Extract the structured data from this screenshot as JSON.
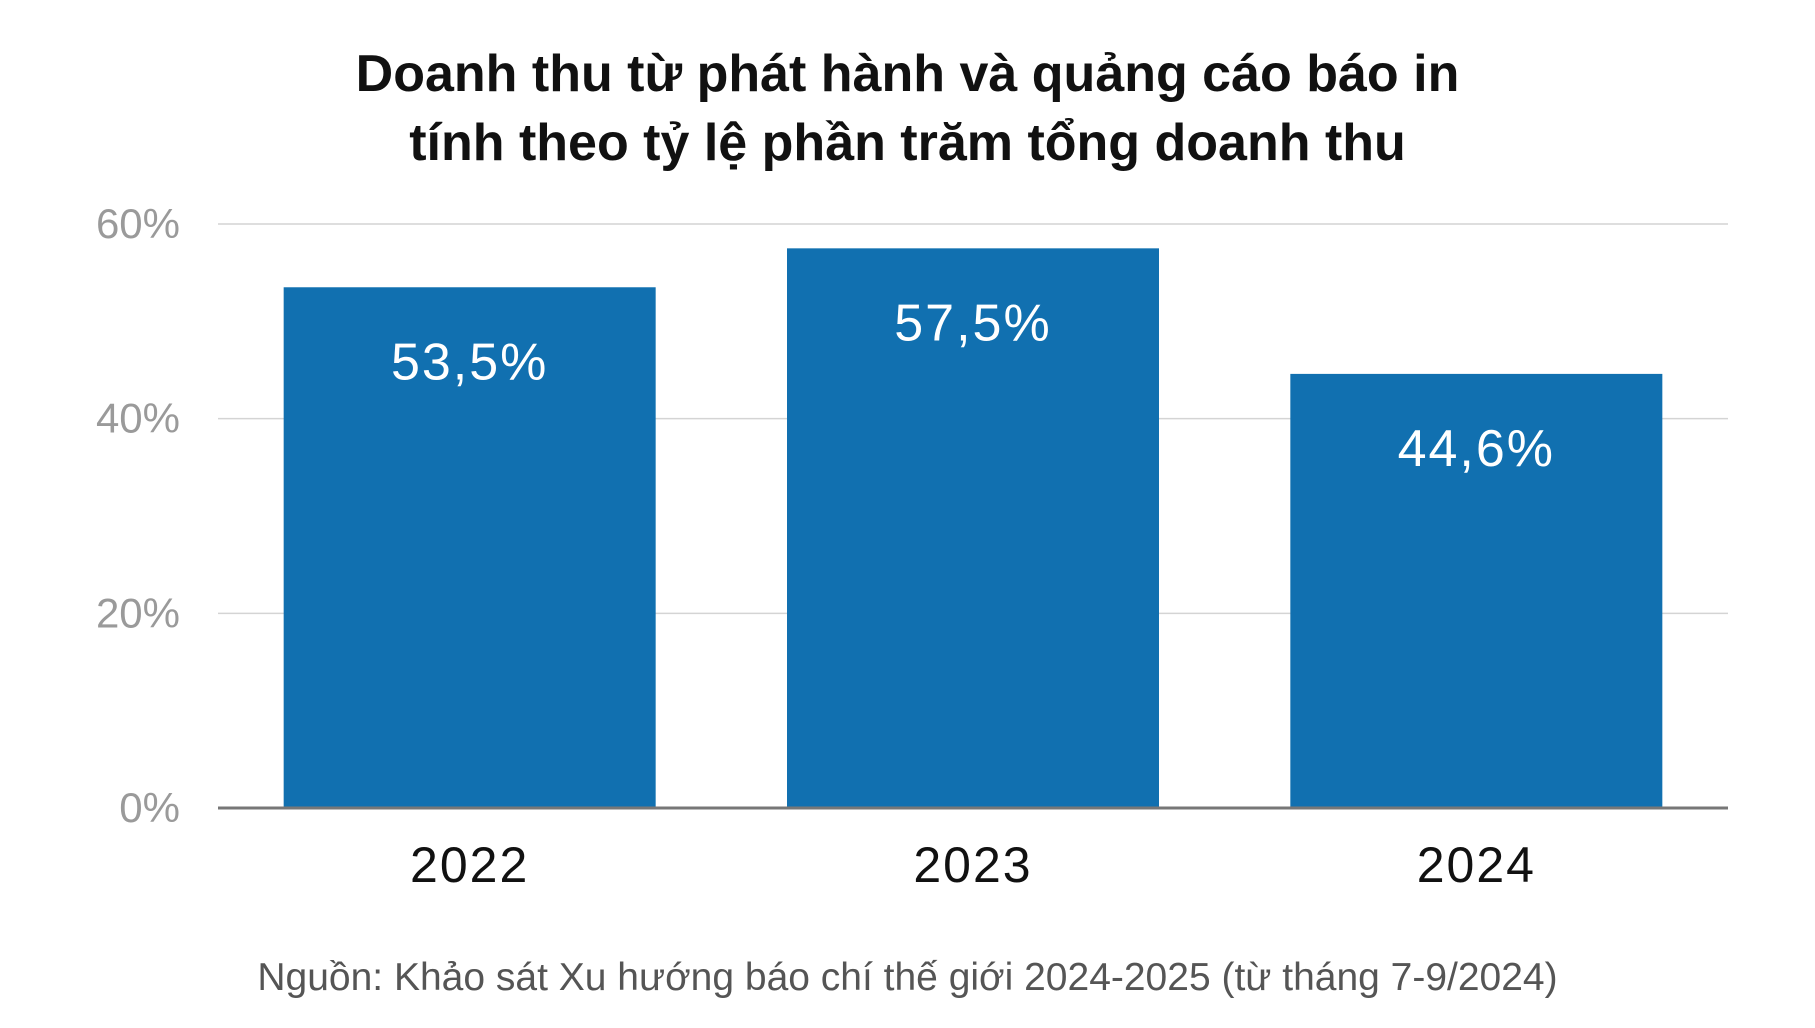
{
  "chart_data": {
    "type": "bar",
    "title_lines": [
      "Doanh thu từ phát hành và quảng cáo báo in",
      "tính theo tỷ lệ phần trăm tổng doanh thu"
    ],
    "source": "Nguồn: Khảo sát Xu hướng báo chí thế giới 2024-2025 (từ tháng 7-9/2024)",
    "categories": [
      "2022",
      "2023",
      "2024"
    ],
    "values": [
      53.5,
      57.5,
      44.6
    ],
    "value_labels": [
      "53,5%",
      "57,5%",
      "44,6%"
    ],
    "y_ticks": [
      0,
      20,
      40,
      60
    ],
    "y_tick_labels": [
      "0%",
      "20%",
      "40%",
      "60%"
    ],
    "ylim": [
      0,
      60
    ],
    "grid": true,
    "bar_color": "#1170b0",
    "value_label_color": "#ffffff"
  }
}
